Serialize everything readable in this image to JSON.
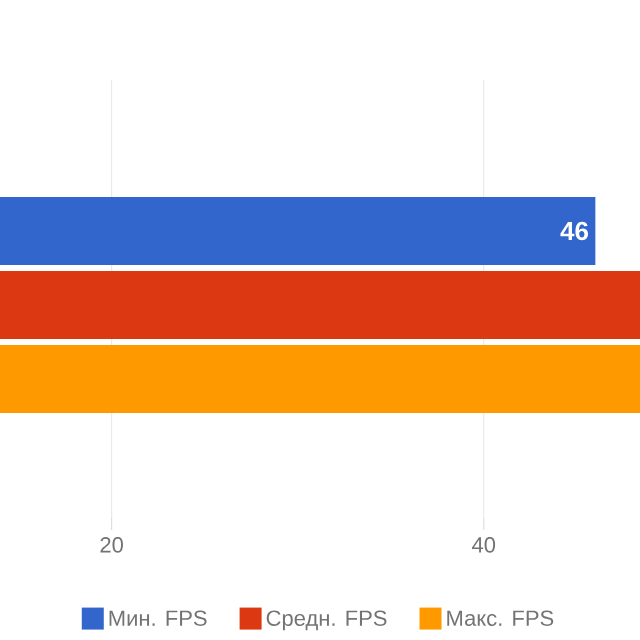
{
  "chart_data": {
    "type": "bar",
    "orientation": "horizontal",
    "categories": [
      null
    ],
    "series": [
      {
        "name": "Мин. FPS",
        "color": "#3366cc",
        "values": [
          46
        ],
        "value_labels": [
          "46"
        ]
      },
      {
        "name": "Средн. FPS",
        "color": "#dc3912",
        "values": [
          48.4
        ],
        "value_labels": [
          null
        ]
      },
      {
        "name": "Макс. FPS",
        "color": "#ff9900",
        "values": [
          48.4
        ],
        "value_labels": [
          null
        ]
      }
    ],
    "xlim": [
      14,
      48.4
    ],
    "xticks": [
      20,
      40
    ],
    "grid": "x",
    "legend": "bottom",
    "tick_labels": "x"
  }
}
